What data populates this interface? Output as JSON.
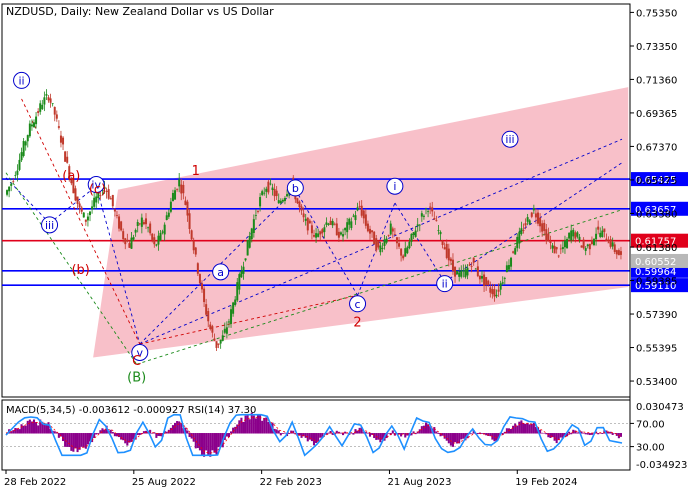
{
  "header": {
    "symbol": "NZDUSD",
    "timeframe": "Daily",
    "description": "New Zealand Dollar vs US Dollar"
  },
  "colors": {
    "background": "#ffffff",
    "frame": "#000000",
    "bull_candle": "#1a8a1a",
    "bear_candle": "#c0392b",
    "channel_fill": "#f7b5bf",
    "blue_level": "#0000ff",
    "red_level": "#e0001b",
    "wave_blue": "#0000cc",
    "wave_red": "#d00000",
    "wave_green": "#1a8a1a",
    "macd_hist": "#8b008b",
    "macd_signal": "#ff0000",
    "rsi_line": "#1e90ff"
  },
  "chart_data": {
    "type": "candlestick",
    "price_axis": {
      "ylim": [
        0.5245,
        0.7585
      ],
      "ticks": [
        "0.75350",
        "0.73350",
        "0.71360",
        "0.69365",
        "0.67370",
        "0.65375",
        "0.63380",
        "0.61380",
        "0.59385",
        "0.57390",
        "0.55395",
        "0.53400"
      ]
    },
    "time_axis": {
      "tick_labels": [
        "28 Feb 2022",
        "25 Aug 2022",
        "22 Feb 2023",
        "21 Aug 2023",
        "19 Feb 2024"
      ]
    },
    "levels": [
      {
        "value": 0.65425,
        "label": "0.65425",
        "style": "blue"
      },
      {
        "value": 0.63657,
        "label": "0.63657",
        "style": "blue"
      },
      {
        "value": 0.61757,
        "label": "0.61757",
        "style": "red"
      },
      {
        "value": 0.59964,
        "label": "0.59964",
        "style": "blue"
      },
      {
        "value": 0.5911,
        "label": "0.59110",
        "style": "blue"
      }
    ],
    "current_price": {
      "value": 0.6055,
      "label": "0.60552"
    },
    "price_path": [
      0.645,
      0.652,
      0.662,
      0.674,
      0.685,
      0.692,
      0.7,
      0.704,
      0.693,
      0.678,
      0.662,
      0.648,
      0.636,
      0.63,
      0.638,
      0.645,
      0.65,
      0.642,
      0.63,
      0.62,
      0.615,
      0.624,
      0.63,
      0.625,
      0.614,
      0.62,
      0.632,
      0.645,
      0.653,
      0.64,
      0.62,
      0.6,
      0.58,
      0.565,
      0.555,
      0.56,
      0.57,
      0.585,
      0.6,
      0.615,
      0.63,
      0.642,
      0.65,
      0.648,
      0.64,
      0.645,
      0.653,
      0.64,
      0.63,
      0.625,
      0.62,
      0.625,
      0.63,
      0.625,
      0.62,
      0.626,
      0.632,
      0.638,
      0.627,
      0.62,
      0.612,
      0.618,
      0.625,
      0.615,
      0.608,
      0.616,
      0.625,
      0.632,
      0.638,
      0.63,
      0.62,
      0.61,
      0.6,
      0.597,
      0.599,
      0.605,
      0.598,
      0.593,
      0.588,
      0.586,
      0.595,
      0.605,
      0.615,
      0.623,
      0.63,
      0.636,
      0.628,
      0.62,
      0.613,
      0.61,
      0.615,
      0.623,
      0.62,
      0.613,
      0.615,
      0.623,
      0.622,
      0.618,
      0.612,
      0.608
    ],
    "channel": {
      "upper": [
        {
          "i": 18,
          "p": 0.648
        },
        {
          "i": 100,
          "p": 0.709
        }
      ],
      "lower": [
        {
          "i": 14,
          "p": 0.548
        },
        {
          "i": 100,
          "p": 0.59
        }
      ]
    },
    "waves": [
      {
        "label": "ii",
        "i": 2.5,
        "p": 0.713,
        "style": "blue-circle"
      },
      {
        "label": "iii",
        "i": 7,
        "p": 0.627,
        "style": "blue-circle"
      },
      {
        "label": "iv",
        "i": 14.5,
        "p": 0.651,
        "style": "blue-circle"
      },
      {
        "label": "v",
        "i": 21.5,
        "p": 0.551,
        "style": "blue-circle"
      },
      {
        "label": "(a)",
        "i": 10.5,
        "p": 0.656,
        "style": "red"
      },
      {
        "label": "(b)",
        "i": 12,
        "p": 0.6,
        "style": "red"
      },
      {
        "label": "(c)",
        "i": 14.7,
        "p": 0.648,
        "style": "red"
      },
      {
        "label": "C",
        "i": 21,
        "p": 0.546,
        "style": "red-plain"
      },
      {
        "label": "(B)",
        "i": 21,
        "p": 0.536,
        "style": "green"
      },
      {
        "label": "1",
        "i": 30.5,
        "p": 0.659,
        "style": "red-plain"
      },
      {
        "label": "a",
        "i": 34.5,
        "p": 0.599,
        "style": "blue-circle"
      },
      {
        "label": "b",
        "i": 46.5,
        "p": 0.649,
        "style": "blue-circle"
      },
      {
        "label": "c",
        "i": 56.5,
        "p": 0.58,
        "style": "blue-circle"
      },
      {
        "label": "2",
        "i": 56.5,
        "p": 0.569,
        "style": "red-plain"
      },
      {
        "label": "i",
        "i": 62.5,
        "p": 0.65,
        "style": "blue-circle"
      },
      {
        "label": "ii",
        "i": 70.5,
        "p": 0.592,
        "style": "blue-circle"
      },
      {
        "label": "iii",
        "i": 81,
        "p": 0.678,
        "style": "blue-circle"
      }
    ],
    "oscillator": {
      "header": "MACD(5,34,5) -0.003612 -0.000927 RSI(14) 37.30",
      "right_ticks": [
        {
          "value": 0.030473,
          "label": "0.030473"
        },
        {
          "value": -0.034923,
          "label": "-0.034923"
        }
      ],
      "rsi_ticks": [
        {
          "value": 70,
          "label": "70.00"
        },
        {
          "value": 30,
          "label": "30.00"
        }
      ]
    }
  }
}
